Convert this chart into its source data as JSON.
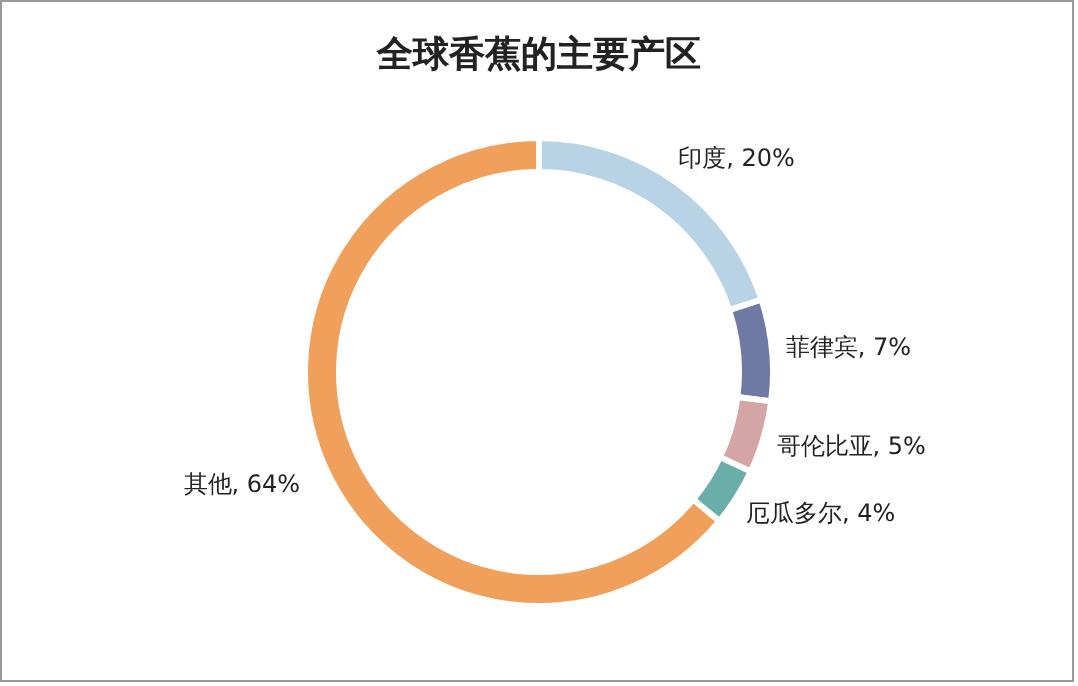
{
  "chart_data": {
    "type": "donut",
    "title": "全球香蕉的主要产区",
    "categories": [
      "印度",
      "菲律宾",
      "哥伦比亚",
      "厄瓜多尔",
      "其他"
    ],
    "values": [
      20,
      7,
      5,
      4,
      64
    ],
    "value_labels": [
      "20%",
      "7%",
      "5%",
      "4%",
      "64%"
    ],
    "colors": [
      "#b8d3e6",
      "#6e7aa3",
      "#d4a5a5",
      "#6aaeaa",
      "#f0a05a"
    ],
    "legend": false
  }
}
